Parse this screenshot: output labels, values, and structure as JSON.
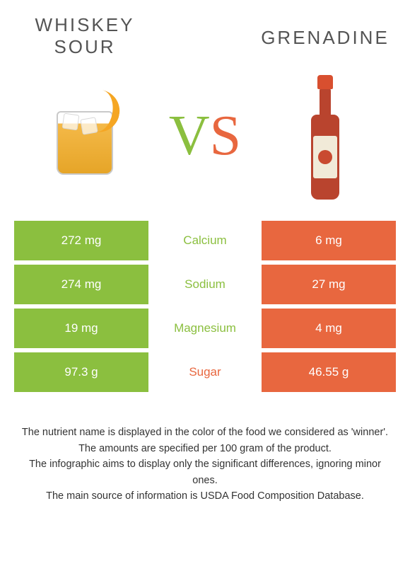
{
  "colors": {
    "left": "#8bbf3f",
    "right": "#e8673f",
    "midText_left": "#8bbf3f",
    "midText_right": "#e8673f",
    "title": "#545454",
    "footer": "#333333",
    "bg": "#ffffff"
  },
  "header": {
    "left_title_l1": "WHISKEY",
    "left_title_l2": "SOUR",
    "right_title": "GRENADINE",
    "vs_v": "V",
    "vs_s": "S"
  },
  "rows": [
    {
      "left": "272 mg",
      "label": "Calcium",
      "right": "6 mg",
      "winner": "left"
    },
    {
      "left": "274 mg",
      "label": "Sodium",
      "right": "27 mg",
      "winner": "left"
    },
    {
      "left": "19 mg",
      "label": "Magnesium",
      "right": "4 mg",
      "winner": "left"
    },
    {
      "left": "97.3 g",
      "label": "Sugar",
      "right": "46.55 g",
      "winner": "right"
    }
  ],
  "footer": {
    "l1": "The nutrient name is displayed in the color of the food we considered as 'winner'.",
    "l2": "The amounts are specified per 100 gram of the product.",
    "l3": "The infographic aims to display only the significant differences, ignoring minor ones.",
    "l4": "The main source of information is USDA Food Composition Database."
  }
}
